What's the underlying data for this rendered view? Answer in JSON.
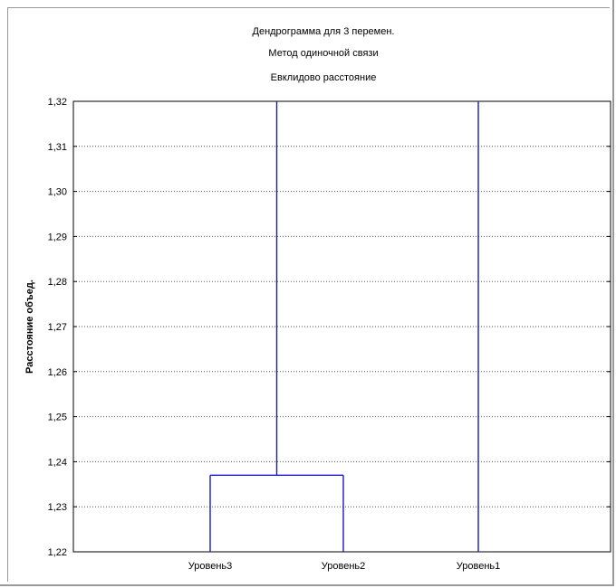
{
  "chart_data": {
    "type": "dendrogram",
    "title_lines": [
      "Дендрограмма для 3   перемен.",
      "Метод одиночной связи",
      "Евклидово расстояние"
    ],
    "ylabel": "Расстояние объед.",
    "xlabel": "",
    "ylim": [
      1.22,
      1.32
    ],
    "yticks": [
      {
        "value": 1.22,
        "label": "1,22"
      },
      {
        "value": 1.23,
        "label": "1,23"
      },
      {
        "value": 1.24,
        "label": "1,24"
      },
      {
        "value": 1.25,
        "label": "1,25"
      },
      {
        "value": 1.26,
        "label": "1,26"
      },
      {
        "value": 1.27,
        "label": "1,27"
      },
      {
        "value": 1.28,
        "label": "1,28"
      },
      {
        "value": 1.29,
        "label": "1,29"
      },
      {
        "value": 1.3,
        "label": "1,30"
      },
      {
        "value": 1.31,
        "label": "1,31"
      },
      {
        "value": 1.32,
        "label": "1,32"
      }
    ],
    "categories": [
      "Уровень3",
      "Уровень2",
      "Уровень1"
    ],
    "merges": [
      {
        "members": [
          "Уровень3",
          "Уровень2"
        ],
        "height": 1.237
      },
      {
        "members": [
          "Уровень3+Уровень2",
          "Уровень1"
        ],
        "height": 1.32
      }
    ],
    "grid": true,
    "colors": {
      "tree": "#1a1acc",
      "grid": "#555555",
      "axis": "#000000"
    }
  }
}
